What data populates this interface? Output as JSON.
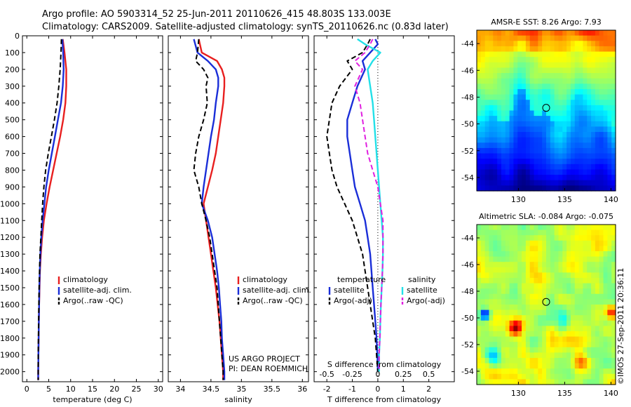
{
  "title_line1": "Argo profile: AO 5903314_52 25-Jun-2011 20110626_415 48.803S 133.003E",
  "title_line2": "Climatology: CARS2009. Satellite-adjusted climatology: synTS_20110626.nc (0.83d later)",
  "credit": "©IMOS 27-Sep-2011 20:36:11",
  "colors": {
    "climatology": "#e81f1f",
    "satellite": "#1a2ed8",
    "argo": "#000000",
    "sal_satellite": "#22e0e8",
    "sal_argo": "#e020e0"
  },
  "chart_data": [
    {
      "type": "line",
      "panel": "temperature",
      "xlabel": "temperature (deg C)",
      "ylabel": "",
      "xlim": [
        -1,
        31
      ],
      "ylim": [
        2060,
        0
      ],
      "xticks": [
        0,
        5,
        10,
        15,
        20,
        25,
        30
      ],
      "yticks": [
        0,
        100,
        200,
        300,
        400,
        500,
        600,
        700,
        800,
        900,
        1000,
        1100,
        1200,
        1300,
        1400,
        1500,
        1600,
        1700,
        1800,
        1900,
        2000
      ],
      "depth": [
        20,
        100,
        200,
        300,
        400,
        500,
        600,
        700,
        800,
        900,
        1000,
        1100,
        1200,
        1300,
        1400,
        1500,
        1600,
        1700,
        1800,
        1900,
        2000,
        2050
      ],
      "legend": [
        "climatology",
        "satellite-adj. clim.",
        "Argo(..raw -QC)"
      ],
      "series": [
        {
          "name": "climatology",
          "style": "solid",
          "color": "#e81f1f",
          "values": [
            8.2,
            8.6,
            9.0,
            9.0,
            8.8,
            8.3,
            7.6,
            6.8,
            6.0,
            5.2,
            4.5,
            3.9,
            3.5,
            3.2,
            3.0,
            2.9,
            2.8,
            2.75,
            2.7,
            2.65,
            2.6,
            2.6
          ]
        },
        {
          "name": "satellite-adj. clim.",
          "style": "solid",
          "color": "#1a2ed8",
          "values": [
            8.1,
            8.3,
            8.4,
            8.2,
            7.8,
            7.1,
            6.4,
            5.7,
            5.0,
            4.4,
            4.0,
            3.6,
            3.3,
            3.1,
            2.95,
            2.85,
            2.8,
            2.75,
            2.7,
            2.65,
            2.6,
            2.6
          ]
        },
        {
          "name": "Argo(..raw -QC)",
          "style": "dashed",
          "color": "#000000",
          "values": [
            7.9,
            7.8,
            7.6,
            7.3,
            6.9,
            6.3,
            5.6,
            4.9,
            4.3,
            3.9,
            3.6,
            3.4,
            3.2,
            3.0,
            2.9,
            2.8,
            2.75,
            2.7,
            2.65,
            2.6,
            2.6,
            2.6
          ]
        }
      ]
    },
    {
      "type": "line",
      "panel": "salinity",
      "xlabel": "salinity",
      "ylabel": "",
      "xlim": [
        33.8,
        36.1
      ],
      "ylim": [
        2060,
        0
      ],
      "xticks": [
        34,
        34.5,
        35,
        35.5,
        36
      ],
      "depth": [
        20,
        100,
        150,
        200,
        250,
        300,
        400,
        500,
        600,
        700,
        800,
        900,
        1000,
        1100,
        1200,
        1300,
        1400,
        1500,
        1600,
        1700,
        1800,
        1900,
        2000,
        2050
      ],
      "legend": [
        "climatology",
        "satellite-adj. clim.",
        "Argo(..raw -QC)"
      ],
      "annotation": [
        "US ARGO PROJECT",
        "PI: DEAN ROEMMICH"
      ],
      "series": [
        {
          "name": "climatology",
          "style": "solid",
          "color": "#e81f1f",
          "values": [
            34.3,
            34.35,
            34.6,
            34.68,
            34.72,
            34.72,
            34.7,
            34.66,
            34.62,
            34.58,
            34.52,
            34.45,
            34.38,
            34.42,
            34.46,
            34.5,
            34.54,
            34.58,
            34.61,
            34.64,
            34.66,
            34.68,
            34.7,
            34.7
          ]
        },
        {
          "name": "satellite-adj. clim.",
          "style": "solid",
          "color": "#1a2ed8",
          "values": [
            34.22,
            34.28,
            34.45,
            34.58,
            34.62,
            34.62,
            34.58,
            34.55,
            34.5,
            34.46,
            34.42,
            34.38,
            34.35,
            34.45,
            34.52,
            34.56,
            34.6,
            34.63,
            34.65,
            34.67,
            34.68,
            34.7,
            34.72,
            34.72
          ]
        },
        {
          "name": "Argo(..raw -QC)",
          "style": "dashed",
          "color": "#000000",
          "values": [
            34.3,
            34.28,
            34.25,
            34.38,
            34.45,
            34.42,
            34.44,
            34.38,
            34.3,
            34.25,
            34.22,
            34.3,
            34.35,
            34.42,
            34.48,
            34.52,
            34.56,
            34.6,
            34.62,
            34.64,
            34.66,
            34.68,
            34.7,
            34.7
          ]
        }
      ]
    },
    {
      "type": "line",
      "panel": "difference",
      "xlabel": "T difference from climatology",
      "xlabel_top": "S difference from climatology",
      "xlim": [
        -2.5,
        3
      ],
      "ylim": [
        2060,
        0
      ],
      "xticks": [
        -2,
        -1,
        0,
        1,
        2
      ],
      "xticks_top": [
        "-0.5",
        "-0.25",
        "0",
        "0.25",
        "0.5"
      ],
      "depth": [
        20,
        50,
        100,
        150,
        200,
        300,
        400,
        500,
        600,
        700,
        800,
        900,
        1000,
        1100,
        1200,
        1300,
        1400,
        1500,
        1600,
        1700,
        1800,
        1900,
        2000
      ],
      "legend_temperature": [
        "temperature",
        "satellite",
        "Argo(-adj)"
      ],
      "legend_salinity": [
        "salinity",
        "satellite",
        "Argo(-adj)"
      ],
      "series": [
        {
          "name": "temperature satellite",
          "style": "solid",
          "color": "#1a2ed8",
          "values": [
            -0.1,
            0,
            -0.3,
            -0.6,
            -0.5,
            -0.8,
            -1.0,
            -1.2,
            -1.2,
            -1.1,
            -1.0,
            -0.9,
            -0.7,
            -0.5,
            -0.4,
            -0.3,
            -0.25,
            -0.2,
            -0.15,
            -0.1,
            -0.05,
            -0.02,
            0
          ]
        },
        {
          "name": "temperature Argo(-adj)",
          "style": "dashed",
          "color": "#000000",
          "values": [
            -0.3,
            -0.4,
            -0.6,
            -1.2,
            -1.0,
            -1.5,
            -1.8,
            -1.9,
            -2.0,
            -1.9,
            -1.8,
            -1.6,
            -1.3,
            -1.0,
            -0.8,
            -0.6,
            -0.5,
            -0.4,
            -0.3,
            -0.2,
            -0.1,
            -0.05,
            0
          ]
        },
        {
          "name": "salinity satellite",
          "style": "solid",
          "color": "#22e0e8",
          "values": [
            -0.8,
            -0.5,
            0.1,
            -0.2,
            -0.4,
            -0.3,
            -0.2,
            -0.15,
            -0.1,
            -0.05,
            0,
            0.05,
            0.1,
            0.15,
            0.2,
            0.2,
            0.18,
            0.15,
            0.12,
            0.1,
            0.08,
            0.05,
            0.05
          ]
        },
        {
          "name": "salinity Argo(-adj)",
          "style": "dashed",
          "color": "#e020e0",
          "values": [
            -0.2,
            -0.3,
            -0.5,
            -0.9,
            -0.6,
            -0.9,
            -0.7,
            -0.6,
            -0.5,
            -0.4,
            -0.2,
            0,
            0.1,
            0.2,
            0.2,
            0.2,
            0.18,
            0.15,
            0.12,
            0.1,
            0.08,
            0.05,
            0.05
          ]
        }
      ]
    },
    {
      "type": "heatmap",
      "panel": "sst_map",
      "title": "AMSR-E SST: 8.26 Argo: 7.93",
      "xlim": [
        125.5,
        140.5
      ],
      "ylim": [
        -55,
        -43
      ],
      "xticks": [
        130,
        135,
        140
      ],
      "yticks": [
        -44,
        -46,
        -48,
        -50,
        -52,
        -54
      ],
      "marker": {
        "lon": 133.0,
        "lat": -48.8
      }
    },
    {
      "type": "heatmap",
      "panel": "sla_map",
      "title": "Altimetric SLA: -0.084 Argo: -0.075",
      "xlim": [
        125.5,
        140.5
      ],
      "ylim": [
        -55,
        -43
      ],
      "xticks": [
        130,
        135,
        140
      ],
      "yticks": [
        -44,
        -46,
        -48,
        -50,
        -52,
        -54
      ],
      "marker": {
        "lon": 133.0,
        "lat": -48.8
      }
    }
  ]
}
